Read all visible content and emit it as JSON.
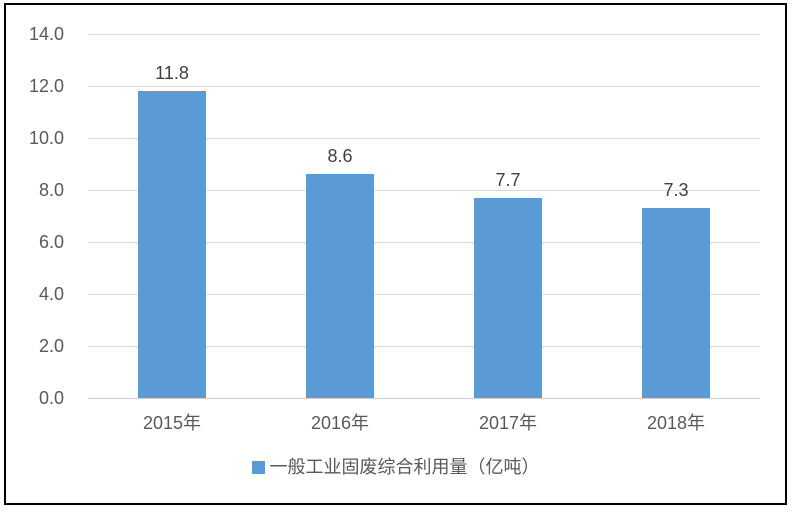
{
  "chart_data": {
    "type": "bar",
    "title": "",
    "xlabel": "",
    "ylabel": "",
    "categories": [
      "2015年",
      "2016年",
      "2017年",
      "2018年"
    ],
    "values": [
      11.8,
      8.6,
      7.7,
      7.3
    ],
    "value_labels": [
      "11.8",
      "8.6",
      "7.7",
      "7.3"
    ],
    "series": [
      {
        "name": "一般工业固废综合利用量（亿吨）",
        "values": [
          11.8,
          8.6,
          7.7,
          7.3
        ]
      }
    ],
    "legend_label": "一般工业固废综合利用量（亿吨）",
    "legend_position": "bottom",
    "ylim": [
      0,
      14
    ],
    "ytick_labels": [
      "0.0",
      "2.0",
      "4.0",
      "6.0",
      "8.0",
      "10.0",
      "12.0",
      "14.0"
    ],
    "grid": true,
    "colors": {
      "bar": "#5B9BD5",
      "gridline": "#D9D9D9",
      "axis_line": "#CFCFCF",
      "value_label": "#404040",
      "tick_label": "#595959",
      "frame_border": "#000000",
      "background": "#FFFFFF"
    }
  }
}
